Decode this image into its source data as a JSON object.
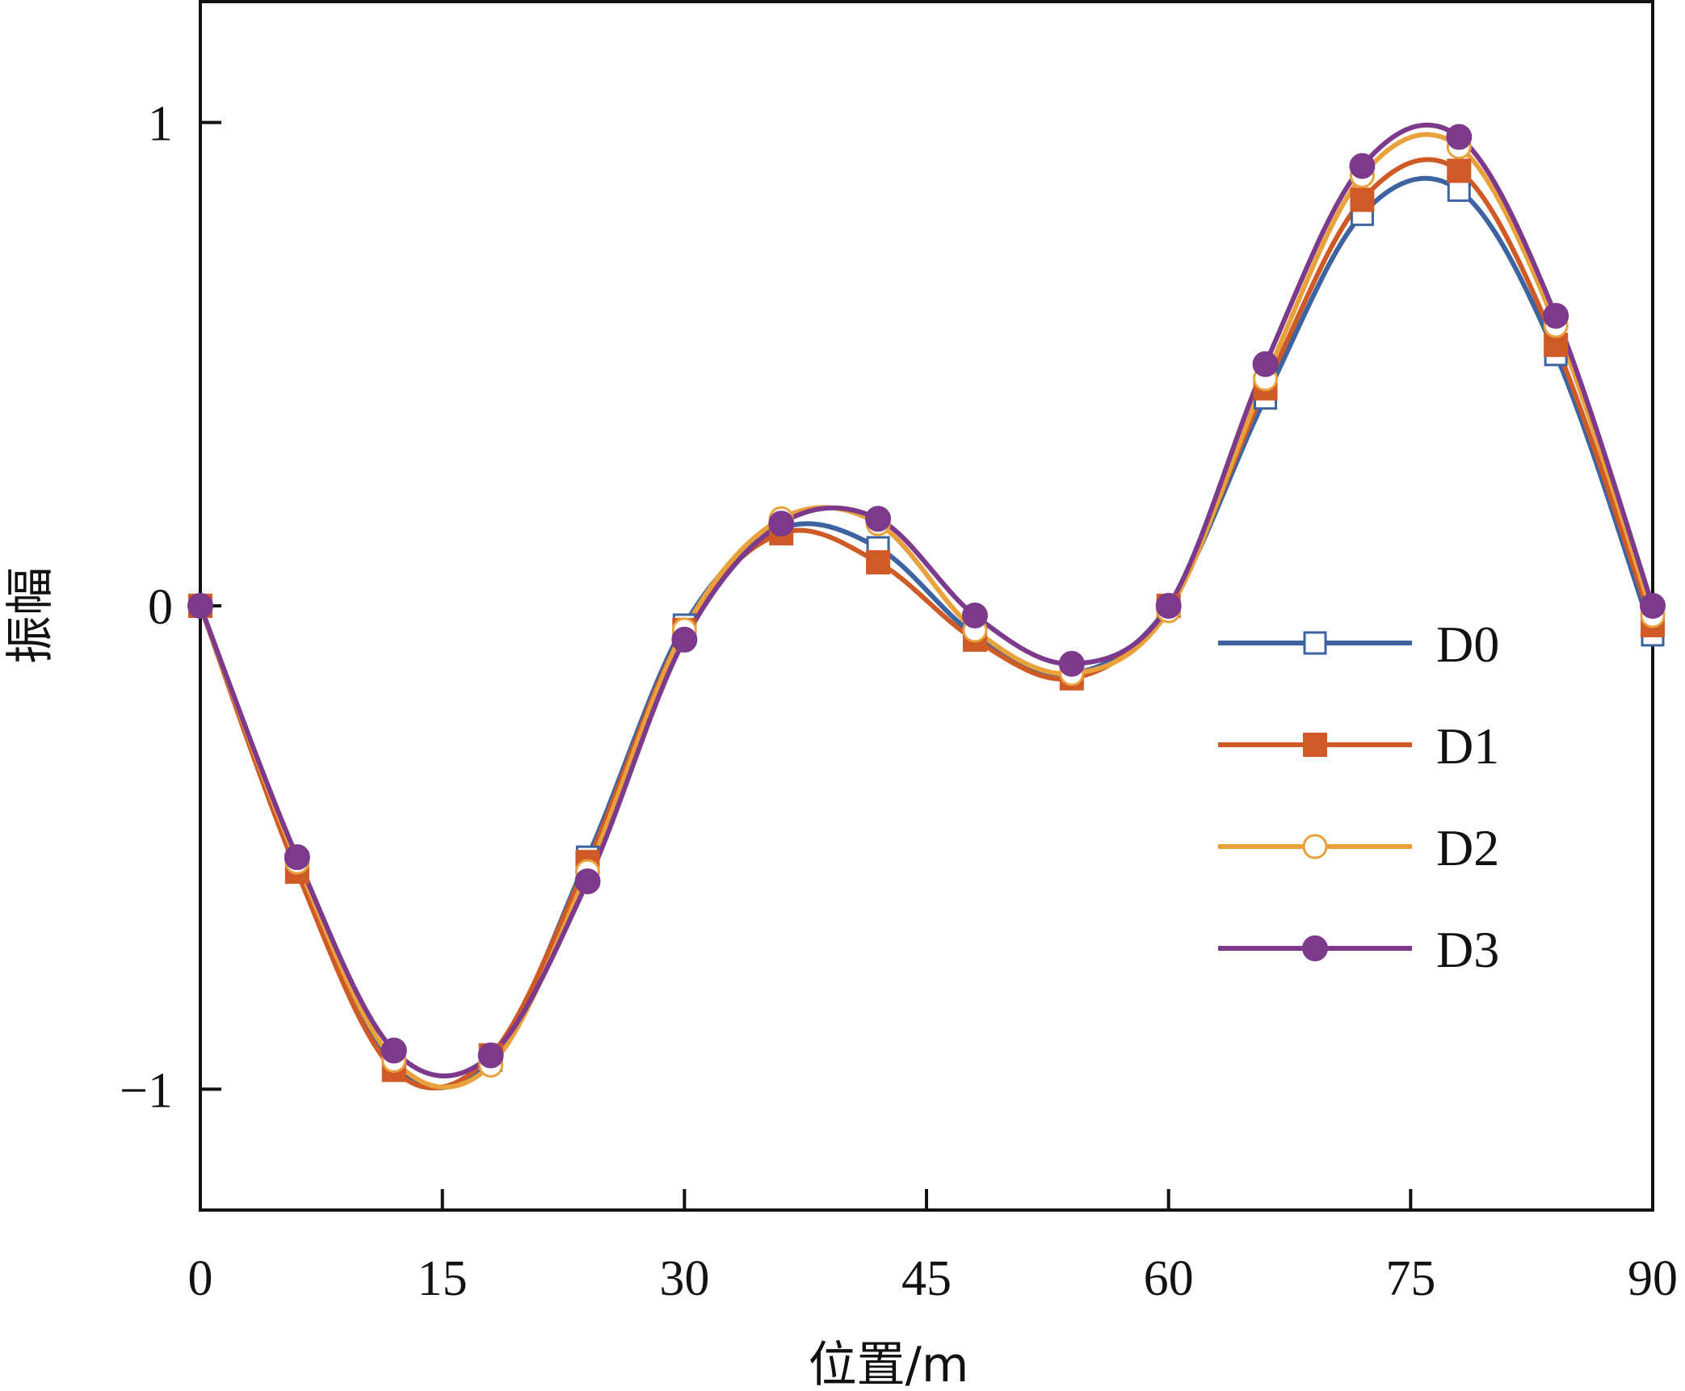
{
  "chart_data": {
    "type": "line",
    "xlabel": "位置/m",
    "ylabel": "振幅",
    "xlim": [
      0,
      90
    ],
    "ylim": [
      -1.25,
      1.25
    ],
    "xticks": [
      0,
      15,
      30,
      45,
      60,
      75,
      90
    ],
    "yticks": [
      -1,
      0,
      1
    ],
    "ytick_labels": [
      "−1",
      "0",
      "1"
    ],
    "grid": false,
    "legend_position": "right",
    "x": [
      0,
      6,
      12,
      18,
      24,
      30,
      36,
      42,
      48,
      54,
      60,
      66,
      72,
      78,
      84,
      90
    ],
    "series": [
      {
        "name": "D0",
        "color": "#3d63a0",
        "marker": "square-open",
        "values": [
          0.0,
          -0.54,
          -0.95,
          -0.94,
          -0.52,
          -0.04,
          0.16,
          0.12,
          -0.06,
          -0.14,
          0.0,
          0.43,
          0.81,
          0.86,
          0.52,
          -0.06
        ]
      },
      {
        "name": "D1",
        "color": "#cf5a26",
        "marker": "square-filled",
        "values": [
          0.0,
          -0.55,
          -0.96,
          -0.93,
          -0.53,
          -0.05,
          0.15,
          0.09,
          -0.07,
          -0.15,
          0.0,
          0.45,
          0.84,
          0.9,
          0.54,
          -0.04
        ]
      },
      {
        "name": "D2",
        "color": "#e9a23b",
        "marker": "circle-open",
        "values": [
          0.0,
          -0.53,
          -0.94,
          -0.95,
          -0.55,
          -0.05,
          0.18,
          0.17,
          -0.05,
          -0.14,
          -0.01,
          0.47,
          0.89,
          0.95,
          0.58,
          -0.02
        ]
      },
      {
        "name": "D3",
        "color": "#7d3a8c",
        "marker": "circle-filled",
        "values": [
          0.0,
          -0.52,
          -0.92,
          -0.93,
          -0.57,
          -0.07,
          0.17,
          0.18,
          -0.02,
          -0.12,
          0.0,
          0.5,
          0.91,
          0.97,
          0.6,
          0.0
        ]
      }
    ]
  }
}
